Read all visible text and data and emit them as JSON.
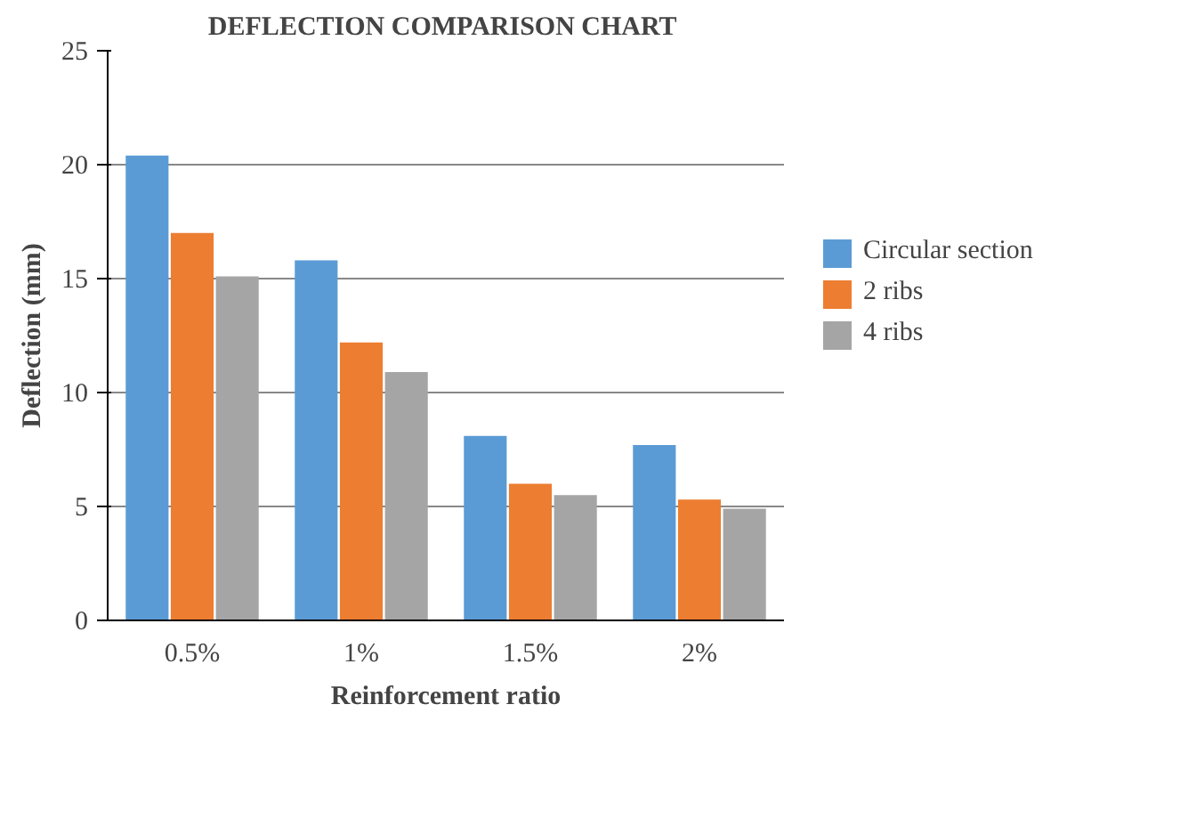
{
  "chart_data": {
    "type": "bar",
    "title": "DEFLECTION  COMPARISON CHART",
    "xlabel": "Reinforcement ratio",
    "ylabel": "Deflection (mm)",
    "categories": [
      "0.5%",
      "1%",
      "1.5%",
      "2%"
    ],
    "series": [
      {
        "name": "Circular section",
        "color": "#5b9bd5",
        "values": [
          20.4,
          15.8,
          8.1,
          7.7
        ]
      },
      {
        "name": "2 ribs",
        "color": "#ed7d31",
        "values": [
          17.0,
          12.2,
          6.0,
          5.3
        ]
      },
      {
        "name": "4 ribs",
        "color": "#a5a5a5",
        "values": [
          15.1,
          10.9,
          5.5,
          4.9
        ]
      }
    ],
    "ylim": [
      0,
      25
    ],
    "yticks": [
      0,
      5,
      10,
      15,
      20,
      25
    ],
    "grid": "y",
    "legend": "right"
  }
}
